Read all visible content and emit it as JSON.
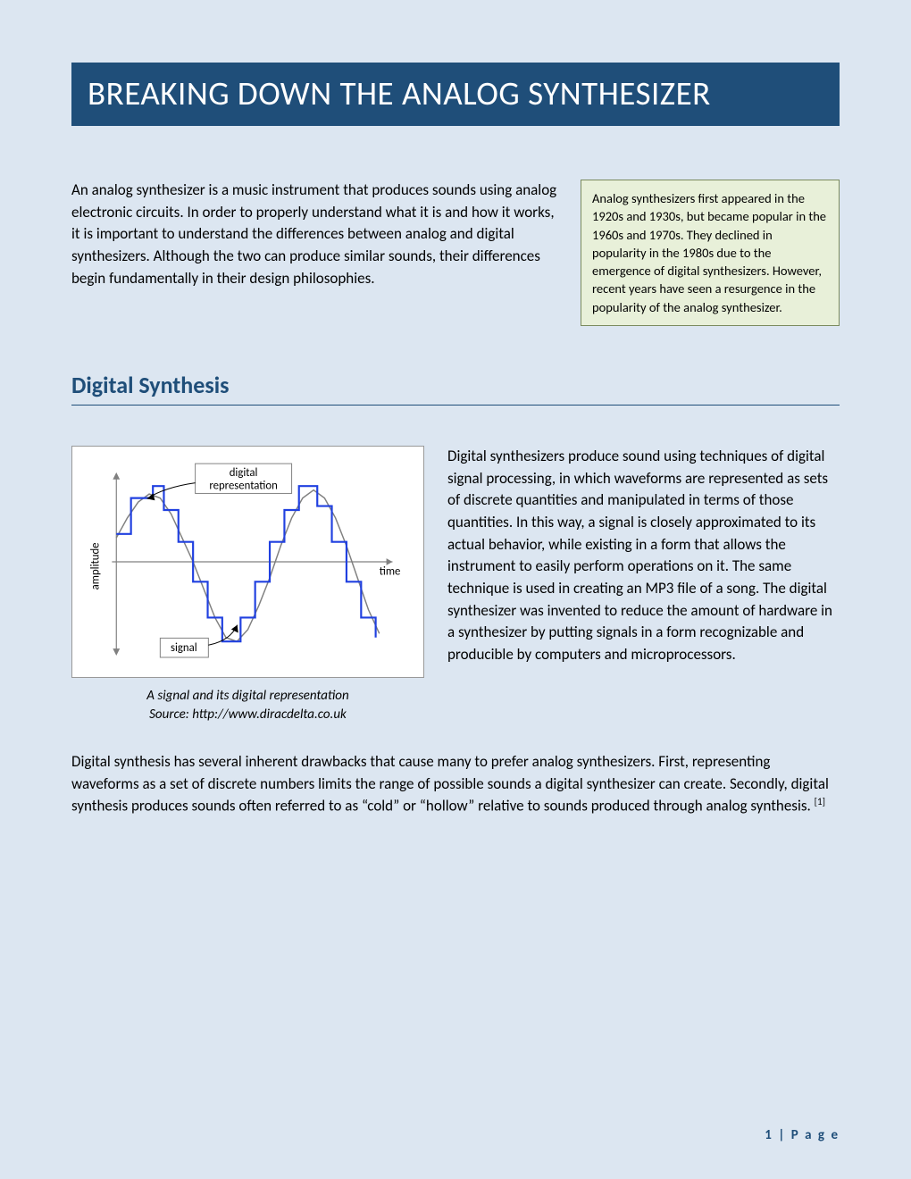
{
  "colors": {
    "page_bg": "#dce6f1",
    "title_bg": "#1f4e79",
    "title_text": "#ffffff",
    "heading_text": "#1f4e79",
    "sidebar_bg": "#e8f0d9",
    "sidebar_border": "#7a8a5e",
    "footer_text": "#1f4e79",
    "chart_signal": "#808080",
    "chart_digital": "#2040e0",
    "chart_axis": "#808080",
    "chart_label_box_border": "#808080",
    "chart_arrow": "#000000"
  },
  "title": "BREAKING DOWN THE ANALOG SYNTHESIZER",
  "intro": "An analog synthesizer is a music instrument that produces sounds using analog electronic circuits. In order to properly understand what it is and how it works, it is important to understand the differences between analog and digital synthesizers. Although the two can produce similar sounds, their differences begin fundamentally in their design philosophies.",
  "sidebar": "Analog synthesizers first appeared in the 1920s and 1930s, but became popular in the 1960s and 1970s. They declined in popularity in the 1980s due to the emergence of digital synthesizers. However, recent years have seen a resurgence in the popularity of the analog synthesizer.",
  "section": {
    "heading": "Digital Synthesis",
    "figure": {
      "caption_line1": "A signal and its digital representation",
      "caption_line2": "Source: http://www.diracdelta.co.uk",
      "labels": {
        "digital_rep": "digital\nrepresentation",
        "signal": "signal",
        "amplitude": "amplitude",
        "time": "time"
      },
      "chart": {
        "type": "line",
        "xlim": [
          0,
          360
        ],
        "ylim": [
          -110,
          110
        ],
        "analog_stroke_width": 1.5,
        "digital_stroke_width": 2.2,
        "axis_stroke_width": 1.2,
        "analog_points": [
          [
            0,
            30
          ],
          [
            15,
            55
          ],
          [
            30,
            75
          ],
          [
            45,
            85
          ],
          [
            60,
            80
          ],
          [
            75,
            60
          ],
          [
            90,
            30
          ],
          [
            105,
            0
          ],
          [
            120,
            -35
          ],
          [
            135,
            -70
          ],
          [
            150,
            -95
          ],
          [
            165,
            -100
          ],
          [
            180,
            -85
          ],
          [
            195,
            -55
          ],
          [
            210,
            -20
          ],
          [
            225,
            20
          ],
          [
            240,
            55
          ],
          [
            255,
            80
          ],
          [
            270,
            90
          ],
          [
            285,
            80
          ],
          [
            300,
            55
          ],
          [
            315,
            20
          ],
          [
            330,
            -20
          ],
          [
            345,
            -60
          ],
          [
            360,
            -90
          ]
        ],
        "digital_points": [
          [
            0,
            35
          ],
          [
            20,
            35
          ],
          [
            20,
            80
          ],
          [
            50,
            80
          ],
          [
            50,
            95
          ],
          [
            65,
            95
          ],
          [
            65,
            65
          ],
          [
            85,
            65
          ],
          [
            85,
            25
          ],
          [
            105,
            25
          ],
          [
            105,
            -25
          ],
          [
            125,
            -25
          ],
          [
            125,
            -70
          ],
          [
            145,
            -70
          ],
          [
            145,
            -100
          ],
          [
            170,
            -100
          ],
          [
            170,
            -70
          ],
          [
            190,
            -70
          ],
          [
            190,
            -25
          ],
          [
            210,
            -25
          ],
          [
            210,
            25
          ],
          [
            230,
            25
          ],
          [
            230,
            65
          ],
          [
            250,
            65
          ],
          [
            250,
            95
          ],
          [
            275,
            95
          ],
          [
            275,
            70
          ],
          [
            295,
            70
          ],
          [
            295,
            25
          ],
          [
            315,
            25
          ],
          [
            315,
            -25
          ],
          [
            335,
            -25
          ],
          [
            335,
            -70
          ],
          [
            355,
            -70
          ],
          [
            355,
            -95
          ]
        ]
      }
    },
    "side_text": "Digital synthesizers produce sound using techniques of digital signal processing, in which waveforms are represented as sets of discrete quantities and manipulated in terms of those quantities. In this way, a signal is closely approximated to its actual behavior, while existing in a form that allows the instrument to easily perform operations on it. The same technique is used in creating an MP3 file of a song. The digital synthesizer was invented to reduce the amount of hardware in a synthesizer by putting signals in a form recognizable and producible by computers and microprocessors.",
    "lower_para": "Digital synthesis has several inherent drawbacks that cause many to prefer analog synthesizers. First, representing waveforms as a set of discrete numbers limits the range of possible sounds a digital synthesizer can create. Secondly, digital synthesis produces sounds often referred to as “cold” or “hollow” relative to sounds produced through analog synthesis. ",
    "citation": "[1]"
  },
  "footer": {
    "page_num": "1",
    "page_label": "P a g e"
  }
}
